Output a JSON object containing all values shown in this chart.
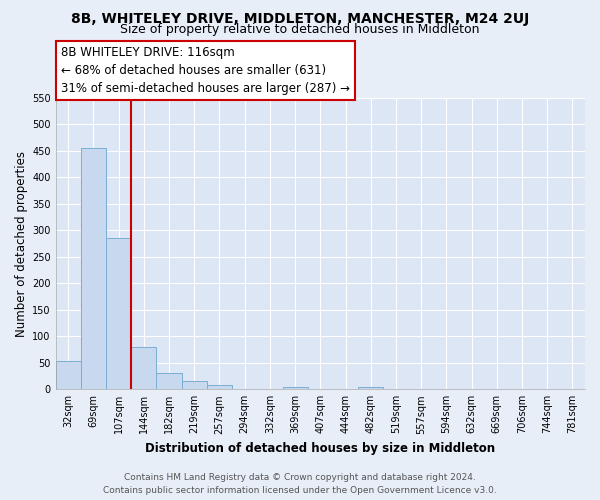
{
  "title": "8B, WHITELEY DRIVE, MIDDLETON, MANCHESTER, M24 2UJ",
  "subtitle": "Size of property relative to detached houses in Middleton",
  "xlabel": "Distribution of detached houses by size in Middleton",
  "ylabel": "Number of detached properties",
  "bar_labels": [
    "32sqm",
    "69sqm",
    "107sqm",
    "144sqm",
    "182sqm",
    "219sqm",
    "257sqm",
    "294sqm",
    "332sqm",
    "369sqm",
    "407sqm",
    "444sqm",
    "482sqm",
    "519sqm",
    "557sqm",
    "594sqm",
    "632sqm",
    "669sqm",
    "706sqm",
    "744sqm",
    "781sqm"
  ],
  "bar_values": [
    53,
    455,
    285,
    79,
    31,
    16,
    8,
    0,
    0,
    5,
    0,
    0,
    4,
    0,
    0,
    0,
    0,
    0,
    0,
    0,
    0
  ],
  "bar_color": "#c8d8ee",
  "bar_edge_color": "#7aaed4",
  "vline_x": 2.5,
  "vline_color": "#cc0000",
  "annotation_text_line1": "8B WHITELEY DRIVE: 116sqm",
  "annotation_text_line2": "← 68% of detached houses are smaller (631)",
  "annotation_text_line3": "31% of semi-detached houses are larger (287) →",
  "annotation_box_color": "#ffffff",
  "annotation_border_color": "#cc0000",
  "ylim": [
    0,
    550
  ],
  "yticks": [
    0,
    50,
    100,
    150,
    200,
    250,
    300,
    350,
    400,
    450,
    500,
    550
  ],
  "footer_line1": "Contains HM Land Registry data © Crown copyright and database right 2024.",
  "footer_line2": "Contains public sector information licensed under the Open Government Licence v3.0.",
  "background_color": "#e8eef8",
  "plot_bg_color": "#dce6f5",
  "grid_color": "#ffffff",
  "title_fontsize": 10,
  "subtitle_fontsize": 9,
  "axis_label_fontsize": 8.5,
  "tick_fontsize": 7,
  "annotation_fontsize": 8.5,
  "footer_fontsize": 6.5
}
